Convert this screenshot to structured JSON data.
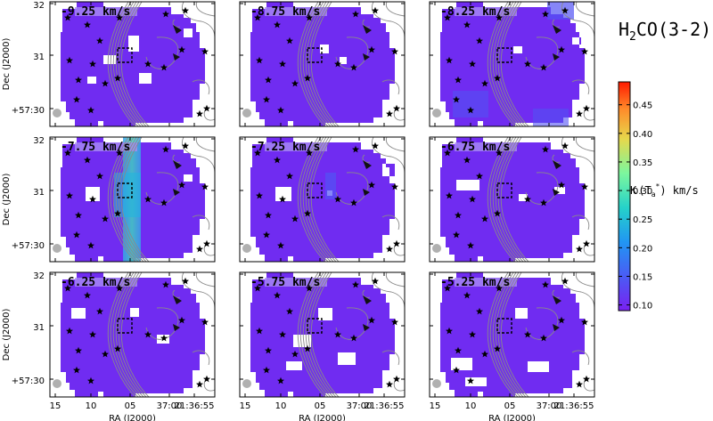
{
  "figure": {
    "title_html": "H2CO(3-2)",
    "title_main": "H",
    "title_sub": "2",
    "title_rest": "CO(3-2)",
    "xlabel": "RA (J2000)",
    "ylabel": "Dec (J2000)",
    "xticks": [
      "15",
      "10",
      "05",
      "37:00",
      "21:36:55"
    ],
    "yticks": [
      "32",
      "31",
      "+57:30"
    ],
    "colorbar_label": "∫ Tₐ* dv  km/s",
    "colorbar_label_parts": {
      "prefix": "K",
      "T": "(T",
      "sub": "a",
      "sup": "*",
      "suffix": ") km/s"
    },
    "colorbar_ticks": [
      "0.45",
      "0.40",
      "0.35",
      "0.30",
      "0.25",
      "0.20",
      "0.15",
      "0.10"
    ]
  },
  "chart_data": {
    "type": "heatmap",
    "title": "H2CO(3-2)",
    "xlabel": "RA (J2000)",
    "ylabel": "Dec (J2000)",
    "colorbar": {
      "label": "K (T_a^*) km/s",
      "range": [
        0.09,
        0.49
      ],
      "colormap": "rainbow",
      "ticks": [
        0.1,
        0.15,
        0.2,
        0.25,
        0.3,
        0.35,
        0.4,
        0.45
      ]
    },
    "panels": [
      {
        "label": "-9.25 km/s",
        "velocity": -9.25,
        "peak": 0.12
      },
      {
        "label": "-8.75 km/s",
        "velocity": -8.75,
        "peak": 0.11
      },
      {
        "label": "-8.25 km/s",
        "velocity": -8.25,
        "peak": 0.14
      },
      {
        "label": "-7.75 km/s",
        "velocity": -7.75,
        "peak": 0.24
      },
      {
        "label": "-7.25 km/s",
        "velocity": -7.25,
        "peak": 0.14
      },
      {
        "label": "-6.75 km/s",
        "velocity": -6.75,
        "peak": 0.11
      },
      {
        "label": "-6.25 km/s",
        "velocity": -6.25,
        "peak": 0.1
      },
      {
        "label": "-5.75 km/s",
        "velocity": -5.75,
        "peak": 0.1
      },
      {
        "label": "-5.25 km/s",
        "velocity": -5.25,
        "peak": 0.1
      }
    ]
  },
  "colors": {
    "map_fill": "#7b2ff5",
    "contour": "#8a8a8a",
    "beam": "#b0b0b0",
    "text": "#000000"
  }
}
